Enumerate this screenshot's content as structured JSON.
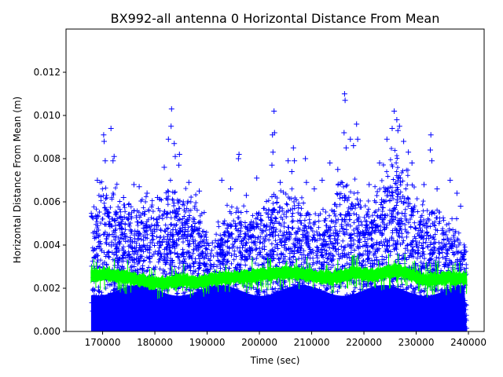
{
  "chart_data": {
    "type": "scatter",
    "title": "BX992-all antenna 0 Horizontal Distance From Mean",
    "xlabel": "Time (sec)",
    "ylabel": "Horizontal Distance From Mean (m)",
    "xlim": [
      163000,
      243000
    ],
    "ylim": [
      0,
      0.014
    ],
    "x_ticks": [
      170000,
      180000,
      190000,
      200000,
      210000,
      220000,
      230000,
      240000
    ],
    "x_tick_labels": [
      "170000",
      "180000",
      "190000",
      "200000",
      "210000",
      "220000",
      "230000",
      "240000"
    ],
    "y_ticks": [
      0,
      0.002,
      0.004,
      0.006,
      0.008,
      0.01,
      0.012
    ],
    "y_tick_labels": [
      "0.000",
      "0.002",
      "0.004",
      "0.006",
      "0.008",
      "0.010",
      "0.012"
    ],
    "grid": false,
    "legend": "none",
    "series": [
      {
        "marker": "+",
        "color": "#0000ff",
        "x_range": [
          167800,
          239700
        ],
        "envelope_upper": {
          "x": [
            167800,
            170000,
            172000,
            175000,
            178000,
            181000,
            183000,
            185000,
            187000,
            189000,
            190500,
            192000,
            194000,
            196000,
            198000,
            200000,
            202000,
            204000,
            206000,
            208000,
            210000,
            212000,
            214000,
            216000,
            218000,
            220000,
            222000,
            224000,
            226000,
            228000,
            230000,
            232000,
            234000,
            236000,
            238000,
            239700
          ],
          "y": [
            0.005,
            0.0066,
            0.0062,
            0.0057,
            0.0055,
            0.0058,
            0.0065,
            0.006,
            0.0057,
            0.0055,
            0.0036,
            0.0045,
            0.0052,
            0.0055,
            0.005,
            0.0052,
            0.006,
            0.0062,
            0.006,
            0.0057,
            0.005,
            0.005,
            0.0055,
            0.007,
            0.0063,
            0.0055,
            0.0058,
            0.007,
            0.0078,
            0.007,
            0.0057,
            0.0055,
            0.0052,
            0.005,
            0.0045,
            0.0037
          ]
        },
        "outliers": [
          {
            "x": 168000,
            "y": 0.0053
          },
          {
            "x": 169000,
            "y": 0.007
          },
          {
            "x": 170200,
            "y": 0.0091
          },
          {
            "x": 170300,
            "y": 0.0088
          },
          {
            "x": 170500,
            "y": 0.0079
          },
          {
            "x": 171600,
            "y": 0.0094
          },
          {
            "x": 172200,
            "y": 0.0081
          },
          {
            "x": 172000,
            "y": 0.0079
          },
          {
            "x": 174000,
            "y": 0.0062
          },
          {
            "x": 176000,
            "y": 0.0068
          },
          {
            "x": 177000,
            "y": 0.0067
          },
          {
            "x": 178500,
            "y": 0.0064
          },
          {
            "x": 180500,
            "y": 0.0062
          },
          {
            "x": 181800,
            "y": 0.0076
          },
          {
            "x": 182600,
            "y": 0.0089
          },
          {
            "x": 183200,
            "y": 0.0103
          },
          {
            "x": 183100,
            "y": 0.0095
          },
          {
            "x": 183700,
            "y": 0.0087
          },
          {
            "x": 183900,
            "y": 0.0081
          },
          {
            "x": 184700,
            "y": 0.0082
          },
          {
            "x": 184600,
            "y": 0.0077
          },
          {
            "x": 186500,
            "y": 0.0069
          },
          {
            "x": 188500,
            "y": 0.0065
          },
          {
            "x": 191000,
            "y": 0.0041
          },
          {
            "x": 192800,
            "y": 0.007
          },
          {
            "x": 194500,
            "y": 0.0066
          },
          {
            "x": 196100,
            "y": 0.0082
          },
          {
            "x": 196000,
            "y": 0.008
          },
          {
            "x": 197500,
            "y": 0.0063
          },
          {
            "x": 199500,
            "y": 0.0071
          },
          {
            "x": 202500,
            "y": 0.0091
          },
          {
            "x": 202800,
            "y": 0.0102
          },
          {
            "x": 202900,
            "y": 0.0092
          },
          {
            "x": 202600,
            "y": 0.0083
          },
          {
            "x": 202400,
            "y": 0.0077
          },
          {
            "x": 204000,
            "y": 0.0069
          },
          {
            "x": 205500,
            "y": 0.0079
          },
          {
            "x": 206500,
            "y": 0.0085
          },
          {
            "x": 206700,
            "y": 0.0079
          },
          {
            "x": 206200,
            "y": 0.0074
          },
          {
            "x": 208800,
            "y": 0.008
          },
          {
            "x": 209000,
            "y": 0.0069
          },
          {
            "x": 210500,
            "y": 0.0066
          },
          {
            "x": 212000,
            "y": 0.007
          },
          {
            "x": 213500,
            "y": 0.0078
          },
          {
            "x": 215000,
            "y": 0.0075
          },
          {
            "x": 216300,
            "y": 0.011
          },
          {
            "x": 216400,
            "y": 0.0107
          },
          {
            "x": 216200,
            "y": 0.0092
          },
          {
            "x": 216600,
            "y": 0.0085
          },
          {
            "x": 217400,
            "y": 0.0089
          },
          {
            "x": 218000,
            "y": 0.0086
          },
          {
            "x": 218600,
            "y": 0.0096
          },
          {
            "x": 218800,
            "y": 0.0089
          },
          {
            "x": 221000,
            "y": 0.0068
          },
          {
            "x": 223000,
            "y": 0.0078
          },
          {
            "x": 224400,
            "y": 0.0089
          },
          {
            "x": 225400,
            "y": 0.0094
          },
          {
            "x": 225800,
            "y": 0.0102
          },
          {
            "x": 226300,
            "y": 0.0098
          },
          {
            "x": 226500,
            "y": 0.0093
          },
          {
            "x": 226800,
            "y": 0.0095
          },
          {
            "x": 227600,
            "y": 0.0088
          },
          {
            "x": 228500,
            "y": 0.0083
          },
          {
            "x": 229200,
            "y": 0.0078
          },
          {
            "x": 231500,
            "y": 0.0068
          },
          {
            "x": 232800,
            "y": 0.0091
          },
          {
            "x": 232700,
            "y": 0.0084
          },
          {
            "x": 233000,
            "y": 0.0079
          },
          {
            "x": 234000,
            "y": 0.0066
          },
          {
            "x": 236500,
            "y": 0.007
          },
          {
            "x": 237800,
            "y": 0.0064
          },
          {
            "x": 238500,
            "y": 0.0058
          }
        ]
      },
      {
        "line_style": "solid",
        "color": "#00ff00",
        "x": [
          167800,
          170000,
          172000,
          174000,
          176000,
          178000,
          180000,
          182000,
          184000,
          186000,
          188000,
          190000,
          192000,
          194000,
          196000,
          198000,
          200000,
          202000,
          204000,
          206000,
          208000,
          210000,
          212000,
          214000,
          216000,
          218000,
          220000,
          222000,
          224000,
          226000,
          228000,
          230000,
          232000,
          234000,
          236000,
          238000,
          239700
        ],
        "y": [
          0.0026,
          0.0027,
          0.00265,
          0.00255,
          0.00245,
          0.00235,
          0.00225,
          0.0023,
          0.0024,
          0.00238,
          0.00232,
          0.0024,
          0.00248,
          0.00252,
          0.00255,
          0.00258,
          0.00262,
          0.0027,
          0.00272,
          0.00275,
          0.0027,
          0.00262,
          0.00255,
          0.0025,
          0.00262,
          0.00275,
          0.00268,
          0.00262,
          0.00275,
          0.00285,
          0.00275,
          0.00255,
          0.0024,
          0.00245,
          0.0025,
          0.00248,
          0.00245
        ],
        "band_halfwidth": 0.00035
      }
    ]
  }
}
